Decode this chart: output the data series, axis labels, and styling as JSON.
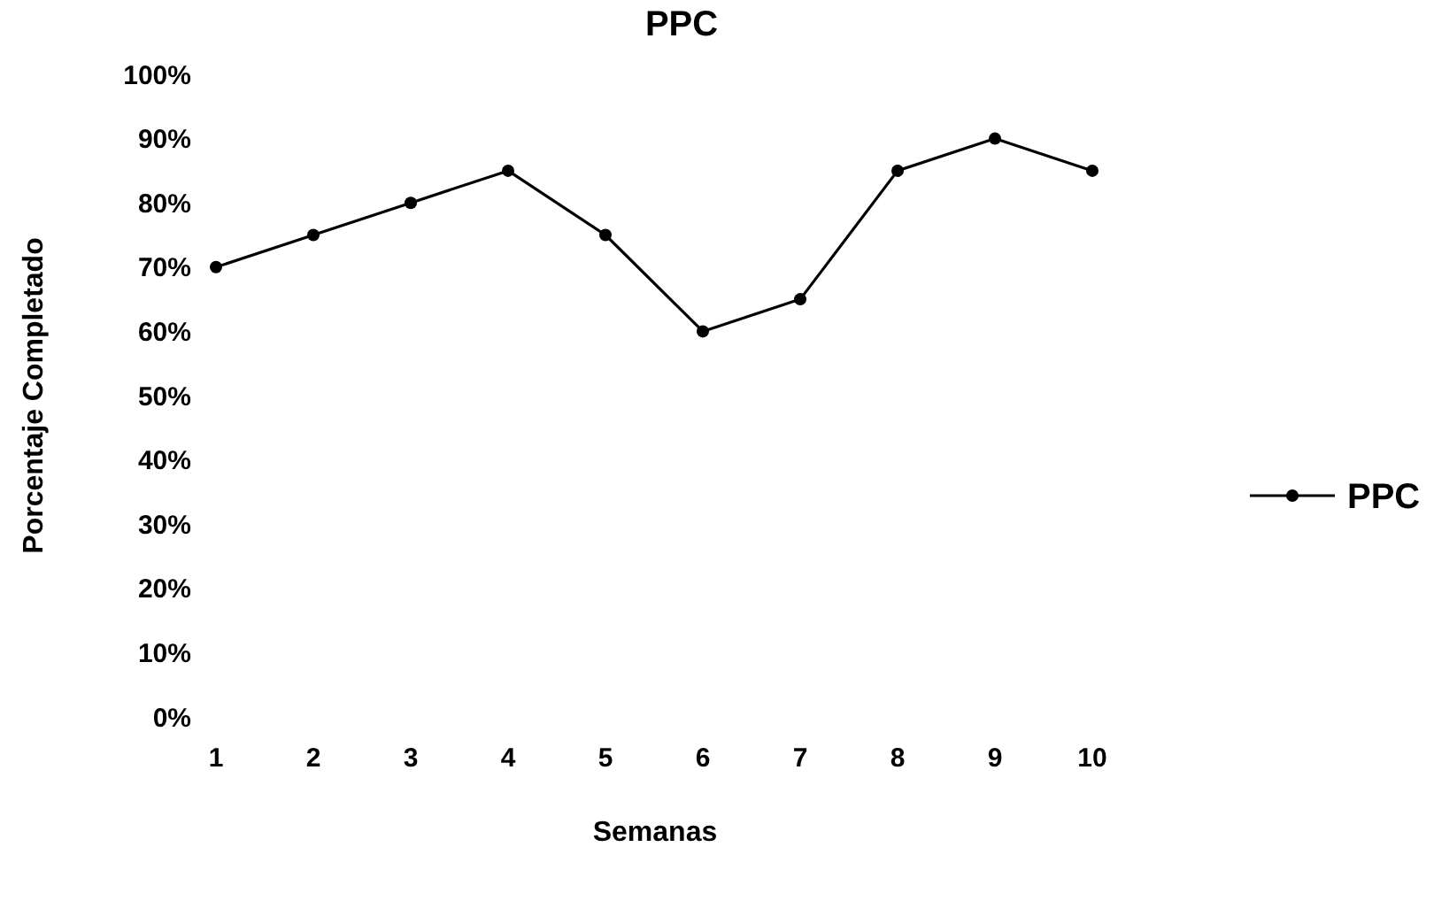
{
  "chart_data": {
    "type": "line",
    "title": "PPC",
    "xlabel": "Semanas",
    "ylabel": "Porcentaje Completado",
    "categories": [
      "1",
      "2",
      "3",
      "4",
      "5",
      "6",
      "7",
      "8",
      "9",
      "10"
    ],
    "series": [
      {
        "name": "PPC",
        "color": "#000000",
        "values": [
          70,
          75,
          80,
          85,
          75,
          60,
          65,
          85,
          90,
          85
        ]
      }
    ],
    "ylim": [
      0,
      100
    ],
    "yticks": [
      {
        "value": 0,
        "label": "0%"
      },
      {
        "value": 10,
        "label": "10%"
      },
      {
        "value": 20,
        "label": "20%"
      },
      {
        "value": 30,
        "label": "30%"
      },
      {
        "value": 40,
        "label": "40%"
      },
      {
        "value": 50,
        "label": "50%"
      },
      {
        "value": 60,
        "label": "60%"
      },
      {
        "value": 70,
        "label": "70%"
      },
      {
        "value": 80,
        "label": "80%"
      },
      {
        "value": 90,
        "label": "90%"
      },
      {
        "value": 100,
        "label": "100%"
      }
    ],
    "grid": false,
    "legend": "right",
    "marker": "circle",
    "line_style": "solid"
  }
}
